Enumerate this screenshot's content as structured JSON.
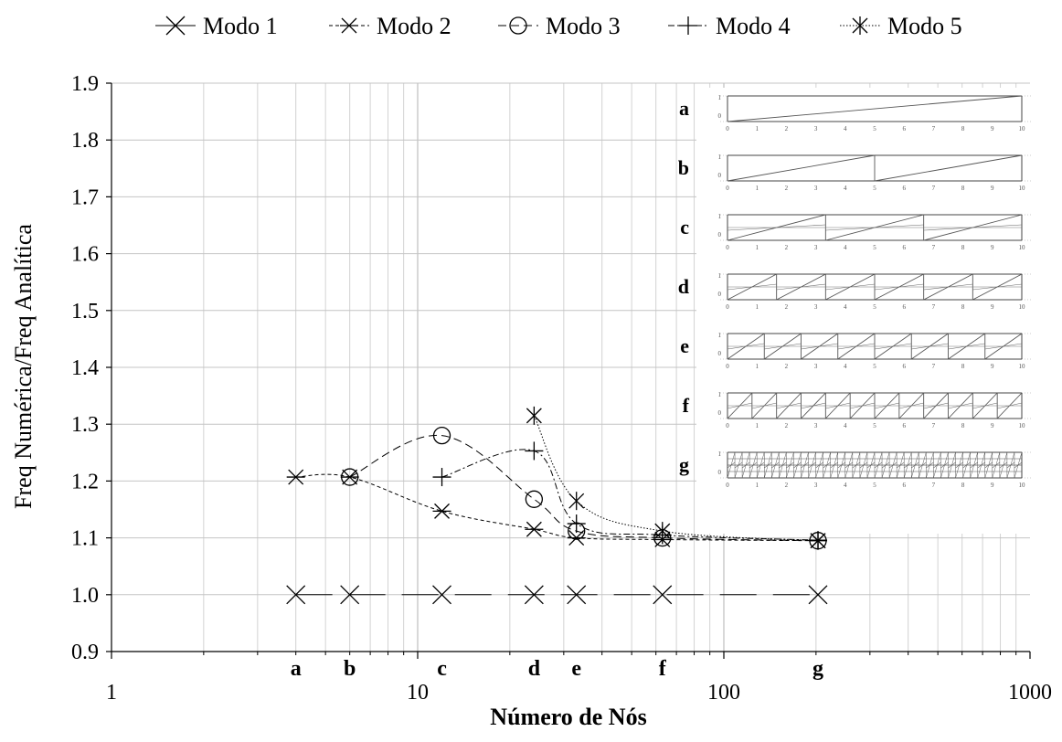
{
  "chart_data": {
    "type": "line",
    "xlabel": "Número de Nós",
    "ylabel": "Freq Numérica/Freq Analítica",
    "x_scale": "log",
    "xlim": [
      1,
      1000
    ],
    "ylim": [
      0.9,
      1.9
    ],
    "x_ticks": [
      1,
      10,
      100,
      1000
    ],
    "x_tick_labels": [
      "1",
      "10",
      "100",
      "1000"
    ],
    "y_ticks": [
      0.9,
      1.0,
      1.1,
      1.2,
      1.3,
      1.4,
      1.5,
      1.6,
      1.7,
      1.8,
      1.9
    ],
    "y_tick_labels": [
      "0.9",
      "1.0",
      "1.1",
      "1.2",
      "1.3",
      "1.4",
      "1.5",
      "1.6",
      "1.7",
      "1.8",
      "1.9"
    ],
    "grid": true,
    "legend_position": "top",
    "mesh_labels": [
      {
        "label": "a",
        "x": 4
      },
      {
        "label": "b",
        "x": 6
      },
      {
        "label": "c",
        "x": 12
      },
      {
        "label": "d",
        "x": 24
      },
      {
        "label": "e",
        "x": 33
      },
      {
        "label": "f",
        "x": 63
      },
      {
        "label": "g",
        "x": 203
      }
    ],
    "series": [
      {
        "name": "Modo 1",
        "marker": "x",
        "dash": "solid-long",
        "x": [
          4,
          6,
          12,
          24,
          33,
          63,
          203
        ],
        "y": [
          1.0,
          1.0,
          1.0,
          1.0,
          1.0,
          1.0,
          1.0
        ]
      },
      {
        "name": "Modo 2",
        "marker": "asterisk",
        "dash": "short-dash",
        "x": [
          4,
          6,
          12,
          24,
          33,
          63,
          203
        ],
        "y": [
          1.207,
          1.207,
          1.147,
          1.115,
          1.1,
          1.097,
          1.095
        ]
      },
      {
        "name": "Modo 3",
        "marker": "circle",
        "dash": "long-dash",
        "x": [
          6,
          12,
          24,
          33,
          63,
          203
        ],
        "y": [
          1.207,
          1.28,
          1.168,
          1.112,
          1.1,
          1.095
        ]
      },
      {
        "name": "Modo 4",
        "marker": "plus",
        "dash": "dash-dot",
        "x": [
          12,
          24,
          33,
          63,
          203
        ],
        "y": [
          1.207,
          1.253,
          1.125,
          1.105,
          1.096
        ]
      },
      {
        "name": "Modo 5",
        "marker": "star",
        "dash": "dotted",
        "x": [
          24,
          33,
          63,
          203
        ],
        "y": [
          1.315,
          1.165,
          1.112,
          1.095
        ]
      }
    ],
    "inset": {
      "letters": [
        "a",
        "b",
        "c",
        "d",
        "e",
        "f",
        "g"
      ],
      "axis_tick_labels": [
        "0",
        "1",
        "2",
        "3",
        "4",
        "5",
        "6",
        "7",
        "8",
        "9",
        "10"
      ],
      "y_tick_labels": [
        "1",
        "0"
      ],
      "divisions": [
        1,
        2,
        3,
        6,
        8,
        12,
        40
      ]
    }
  }
}
